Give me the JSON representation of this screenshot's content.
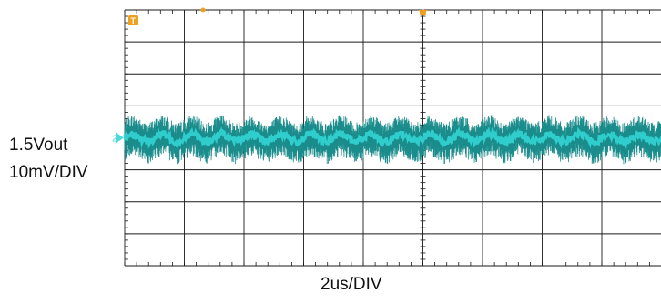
{
  "chart_data": {
    "type": "line",
    "title": "",
    "channel": {
      "name": "1.5Vout",
      "scale": "10mV/DIV",
      "marker": "2"
    },
    "timebase": "2us/DIV",
    "trigger_marker": "T",
    "grid": true,
    "divisions": {
      "x": 10,
      "y": 8
    },
    "xlim": [
      0,
      20
    ],
    "x_unit": "us",
    "ylim": [
      -40,
      40
    ],
    "y_unit": "mV",
    "series": [
      {
        "values_description": "",
        "noise_band_mV": [
          -7,
          6
        ],
        "ripple_period_us": 1.0,
        "ripple_amplitude_mV": 1.2
      }
    ],
    "colors": {
      "trace_envelope": "#1a8c8c",
      "trace_center": "#33d4d4",
      "grid": "#1a1a1a",
      "marker_trigger": "#f0a020",
      "marker_channel": "#4cd9d9"
    }
  }
}
